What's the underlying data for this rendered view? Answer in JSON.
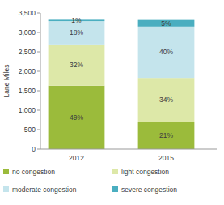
{
  "chart_data": {
    "type": "bar",
    "stacked": true,
    "grid": false,
    "legend": "bottom",
    "y_label": "Lane Miles",
    "categories": [
      "2012",
      "2015"
    ],
    "ylim": [
      0,
      3500
    ],
    "yticks": [
      0,
      500,
      {
        "value": 1000,
        "label": "1,000"
      },
      {
        "value": 1500,
        "label": "1,500"
      },
      {
        "value": 2000,
        "label": "2,000"
      },
      {
        "value": 2500,
        "label": "2,500"
      },
      {
        "value": 3000,
        "label": "3,000"
      },
      {
        "value": 3500,
        "label": "3,500"
      }
    ],
    "series": [
      {
        "name": "no congestion",
        "color": "#9bbb3b",
        "values": [
          1630,
          700
        ],
        "percent_labels": [
          "49%",
          "21%"
        ]
      },
      {
        "name": "light congestion",
        "color": "#dde8a8",
        "values": [
          1060,
          1130
        ],
        "percent_labels": [
          "32%",
          "34%"
        ]
      },
      {
        "name": "moderate congestion",
        "color": "#c4e4ec",
        "values": [
          600,
          1320
        ],
        "percent_labels": [
          "18%",
          "40%"
        ]
      },
      {
        "name": "severe congestion",
        "color": "#4aaec0",
        "values": [
          35,
          170
        ],
        "percent_labels": [
          "1%",
          "5%"
        ]
      }
    ]
  }
}
